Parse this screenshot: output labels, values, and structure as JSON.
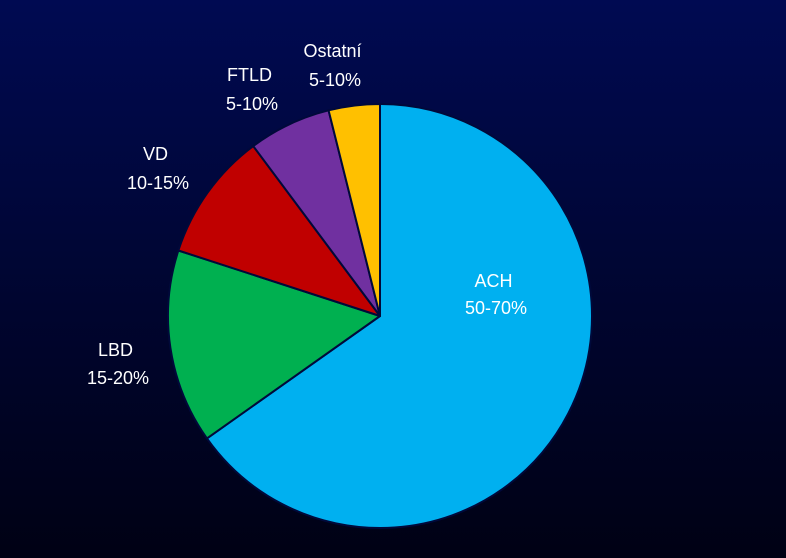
{
  "chart_data": {
    "type": "pie",
    "title": "",
    "start_angle_deg": 90,
    "direction": "clockwise",
    "slices": [
      {
        "key": "ach",
        "name": "ACH",
        "range_label": "50-70%",
        "value": 65.2,
        "color": "#00b0f0"
      },
      {
        "key": "lbd",
        "name": "LBD",
        "range_label": "15-20%",
        "value": 14.8,
        "color": "#00b050"
      },
      {
        "key": "vd",
        "name": "VD",
        "range_label": "10-15%",
        "value": 9.8,
        "color": "#c00000"
      },
      {
        "key": "ftld",
        "name": "FTLD",
        "range_label": "5-10%",
        "value": 6.3,
        "color": "#7030a0"
      },
      {
        "key": "ostatni",
        "name": "Ostatní",
        "range_label": "5-10%",
        "value": 3.9,
        "color": "#ffc000"
      }
    ]
  }
}
